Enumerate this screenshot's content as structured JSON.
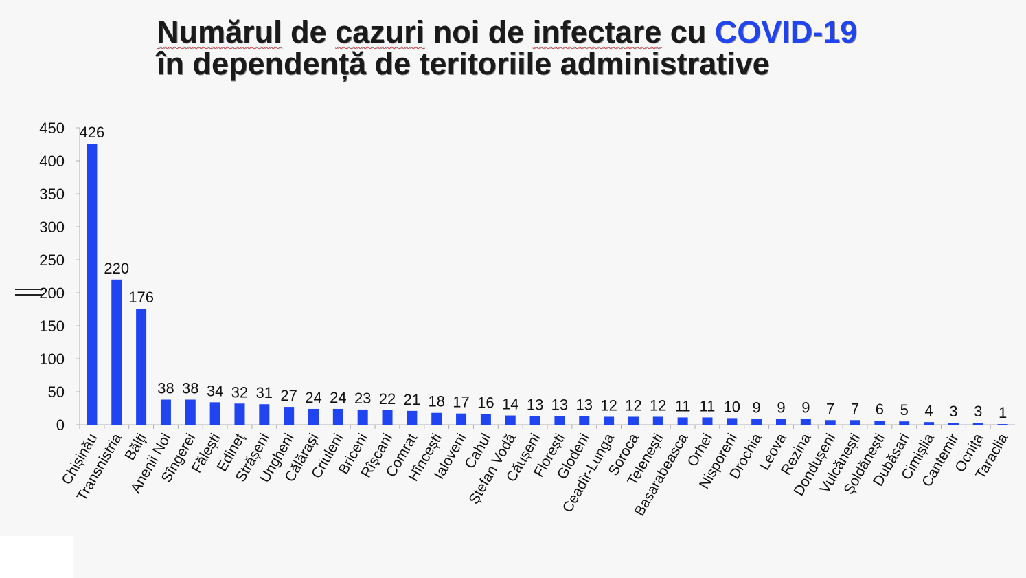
{
  "title": {
    "line1_parts": [
      {
        "text": "Numărul",
        "style": "sq"
      },
      {
        "text": " de ",
        "style": ""
      },
      {
        "text": "cazuri",
        "style": "sq"
      },
      {
        "text": " noi de ",
        "style": ""
      },
      {
        "text": "infectare",
        "style": "sq"
      },
      {
        "text": " cu ",
        "style": ""
      },
      {
        "text": "COVID-19",
        "style": "accent"
      }
    ],
    "line2": "în dependență de teritoriile administrative"
  },
  "colors": {
    "bar": "#2044f0",
    "accent": "#2044f0",
    "text": "#1a1a1a",
    "axis": "#b0b0b0"
  },
  "chart_data": {
    "type": "bar",
    "categories": [
      "Chișinău",
      "Transnistria",
      "Bălți",
      "Anenii Noi",
      "Sîngerei",
      "Fălești",
      "Edineț",
      "Strășeni",
      "Ungheni",
      "Călărași",
      "Criuleni",
      "Briceni",
      "Rîșcani",
      "Comrat",
      "Hîncești",
      "Ialoveni",
      "Cahul",
      "Ștefan Vodă",
      "Căușeni",
      "Florești",
      "Glodeni",
      "Ceadîr-Lunga",
      "Soroca",
      "Telenești",
      "Basarabeasca",
      "Orhei",
      "Nisporeni",
      "Drochia",
      "Leova",
      "Rezina",
      "Dondușeni",
      "Vulcănești",
      "Șoldănești",
      "Dubăsari",
      "Cimișlia",
      "Cantemir",
      "Ocnița",
      "Taraclia"
    ],
    "values": [
      426,
      220,
      176,
      38,
      38,
      34,
      32,
      31,
      27,
      24,
      24,
      23,
      22,
      21,
      18,
      17,
      16,
      14,
      13,
      13,
      13,
      12,
      12,
      12,
      11,
      11,
      10,
      9,
      9,
      9,
      7,
      7,
      6,
      5,
      4,
      3,
      3,
      1
    ],
    "data_labels": [
      "426",
      "220",
      "176",
      "38",
      "38",
      "34",
      "32",
      "31",
      "27",
      "24",
      "24",
      "23",
      "22",
      "21",
      "18",
      "17",
      "16",
      "14",
      "13",
      "13",
      "13",
      "12",
      "12",
      "12",
      "11",
      "11",
      "10",
      "9",
      "9",
      "9",
      "7",
      "7",
      "6",
      "5",
      "4",
      "3",
      "3",
      "1"
    ],
    "yticks": [
      "0",
      "50",
      "100",
      "150",
      "200",
      "250",
      "300",
      "350",
      "400",
      "450"
    ],
    "ylim": [
      0,
      450
    ],
    "grid": false,
    "legend": "none"
  }
}
